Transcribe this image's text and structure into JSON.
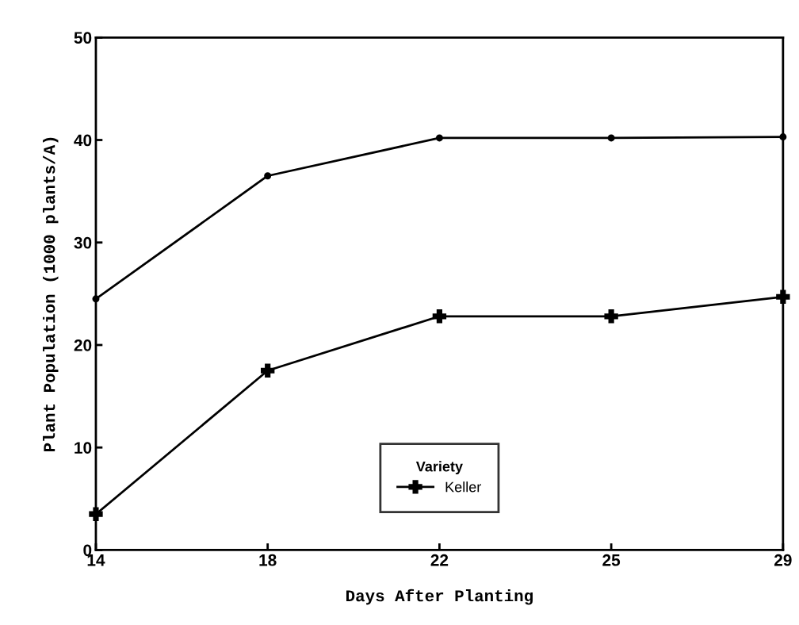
{
  "chart_data": {
    "type": "line",
    "xlabel": "Days After Planting",
    "ylabel": "Plant Population (1000 plants/A)",
    "legend_title": "Variety",
    "categories": [
      "14",
      "18",
      "22",
      "25",
      "29"
    ],
    "series": [
      {
        "color": "#000000",
        "marker": "circle",
        "values": [
          24.5,
          36.5,
          40.2,
          40.2,
          40.3
        ]
      },
      {
        "name": "Keller",
        "color": "#000000",
        "marker": "cross",
        "values": [
          3.5,
          17.5,
          22.8,
          22.8,
          24.7
        ]
      }
    ],
    "ylim": [
      0,
      50
    ],
    "yticks": [
      0,
      10,
      20,
      30,
      40,
      50
    ],
    "grid": false,
    "legend": "bottom",
    "line_style": "solid"
  }
}
